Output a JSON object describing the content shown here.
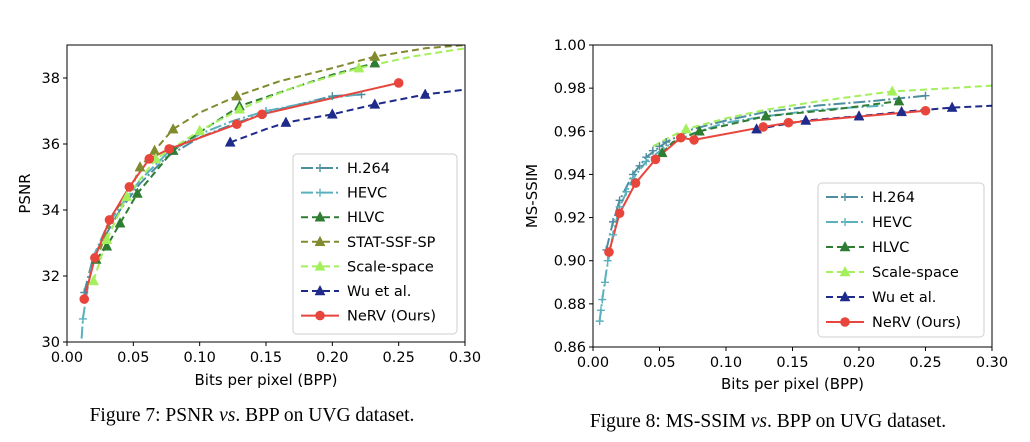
{
  "chart_data": [
    {
      "type": "line",
      "caption": "Figure 7: PSNR vs. BPP on UVG dataset.",
      "caption_parts": {
        "prefix": "Figure 7: PSNR ",
        "italic": "vs",
        "suffix": ". BPP on UVG dataset."
      },
      "xlabel": "Bits per pixel (BPP)",
      "ylabel": "PSNR",
      "xlim": [
        0.0,
        0.3
      ],
      "ylim": [
        30,
        39
      ],
      "xticks": [
        "0.00",
        "0.05",
        "0.10",
        "0.15",
        "0.20",
        "0.25",
        "0.30"
      ],
      "yticks": [
        "30",
        "32",
        "34",
        "36",
        "38"
      ],
      "legend_position": "lower-right",
      "series": [
        {
          "name": "H.264",
          "color": "#4c8ea0",
          "dash": "12 3 2 3",
          "marker": "plus",
          "x": [
            0.013,
            0.02,
            0.03,
            0.04,
            0.055,
            0.075,
            0.1,
            0.125,
            0.15,
            0.175,
            0.2,
            0.222
          ],
          "y": [
            31.5,
            32.6,
            33.3,
            34.0,
            34.8,
            35.6,
            36.2,
            36.6,
            36.95,
            37.2,
            37.45,
            37.5
          ],
          "markers_x": [
            0.013,
            0.15,
            0.2,
            0.222
          ],
          "markers_y": [
            31.5,
            36.95,
            37.45,
            37.5
          ]
        },
        {
          "name": "HEVC",
          "color": "#5ab0bd",
          "dash": "12 3 2 3",
          "marker": "plus",
          "x": [
            0.01,
            0.012,
            0.015,
            0.02,
            0.03,
            0.04,
            0.055,
            0.075,
            0.1,
            0.125,
            0.15,
            0.2,
            0.22
          ],
          "y": [
            29.5,
            30.7,
            31.5,
            32.6,
            33.5,
            34.1,
            34.9,
            35.7,
            36.3,
            36.7,
            37.0,
            37.4,
            37.5
          ],
          "markers_x": [
            0.012,
            0.15
          ],
          "markers_y": [
            30.7,
            37.0
          ]
        },
        {
          "name": "HLVC",
          "color": "#2e7d32",
          "dash": "7 4",
          "marker": "triangle",
          "x": [
            0.022,
            0.03,
            0.04,
            0.053,
            0.08,
            0.1,
            0.13,
            0.2,
            0.232
          ],
          "y": [
            32.5,
            32.9,
            33.6,
            34.5,
            35.8,
            36.35,
            37.15,
            38.1,
            38.45
          ],
          "markers_x": [
            0.022,
            0.03,
            0.04,
            0.053,
            0.08,
            0.13,
            0.232
          ],
          "markers_y": [
            32.5,
            32.9,
            33.6,
            34.5,
            35.8,
            37.15,
            38.45
          ]
        },
        {
          "name": "STAT-SSF-SP",
          "color": "#828a2e",
          "dash": "7 4",
          "marker": "triangle",
          "x": [
            0.025,
            0.035,
            0.048,
            0.055,
            0.066,
            0.08,
            0.1,
            0.128,
            0.16,
            0.2,
            0.232,
            0.27,
            0.3
          ],
          "y": [
            32.8,
            33.9,
            34.6,
            35.3,
            35.8,
            36.45,
            36.95,
            37.45,
            37.9,
            38.3,
            38.65,
            38.9,
            39.0
          ],
          "markers_x": [
            0.055,
            0.066,
            0.08,
            0.128,
            0.232
          ],
          "markers_y": [
            35.3,
            35.8,
            36.45,
            37.45,
            38.65
          ]
        },
        {
          "name": "Scale-space",
          "color": "#a4ef5c",
          "dash": "7 4",
          "marker": "triangle",
          "x": [
            0.02,
            0.03,
            0.045,
            0.067,
            0.1,
            0.13,
            0.17,
            0.22,
            0.26,
            0.3
          ],
          "y": [
            31.85,
            33.1,
            34.4,
            35.55,
            36.4,
            37.05,
            37.7,
            38.3,
            38.65,
            38.9
          ],
          "markers_x": [
            0.02,
            0.03,
            0.045,
            0.067,
            0.1,
            0.13,
            0.22
          ],
          "markers_y": [
            31.85,
            33.1,
            34.4,
            35.55,
            36.4,
            37.05,
            38.3
          ]
        },
        {
          "name": "Wu et al.",
          "color": "#1e2b8a",
          "dash": "7 4",
          "marker": "triangle",
          "x": [
            0.123,
            0.15,
            0.165,
            0.2,
            0.232,
            0.27,
            0.3
          ],
          "y": [
            36.05,
            36.45,
            36.65,
            36.9,
            37.2,
            37.5,
            37.65
          ],
          "markers_x": [
            0.123,
            0.165,
            0.2,
            0.232,
            0.27
          ],
          "markers_y": [
            36.05,
            36.65,
            36.9,
            37.2,
            37.5
          ]
        },
        {
          "name": "NeRV (Ours)",
          "color": "#e8453c",
          "dash": "",
          "marker": "circle",
          "x": [
            0.013,
            0.021,
            0.032,
            0.047,
            0.062,
            0.077,
            0.128,
            0.147,
            0.25
          ],
          "y": [
            31.3,
            32.55,
            33.7,
            34.7,
            35.55,
            35.85,
            36.6,
            36.9,
            37.85
          ],
          "markers_x": [
            0.013,
            0.021,
            0.032,
            0.047,
            0.062,
            0.077,
            0.128,
            0.147,
            0.25
          ],
          "markers_y": [
            31.3,
            32.55,
            33.7,
            34.7,
            35.55,
            35.85,
            36.6,
            36.9,
            37.85
          ]
        }
      ]
    },
    {
      "type": "line",
      "caption": "Figure 8: MS-SSIM vs. BPP on UVG dataset.",
      "caption_parts": {
        "prefix": "Figure 8: MS-SSIM ",
        "italic": "vs",
        "suffix": ". BPP on UVG dataset."
      },
      "xlabel": "Bits per pixel (BPP)",
      "ylabel": "MS-SSIM",
      "xlim": [
        0.0,
        0.3
      ],
      "ylim": [
        0.86,
        1.0
      ],
      "xticks": [
        "0.00",
        "0.05",
        "0.10",
        "0.15",
        "0.20",
        "0.25",
        "0.30"
      ],
      "yticks": [
        "0.86",
        "0.88",
        "0.90",
        "0.92",
        "0.94",
        "0.96",
        "0.98",
        "1.00"
      ],
      "legend_position": "lower-right",
      "series": [
        {
          "name": "H.264",
          "color": "#4c8ea0",
          "dash": "12 3 2 3",
          "marker": "plus",
          "x": [
            0.01,
            0.015,
            0.02,
            0.03,
            0.04,
            0.055,
            0.075,
            0.1,
            0.13,
            0.17,
            0.21,
            0.25
          ],
          "y": [
            0.905,
            0.918,
            0.928,
            0.94,
            0.948,
            0.955,
            0.961,
            0.965,
            0.969,
            0.972,
            0.974,
            0.9765
          ],
          "markers_x": [
            0.01,
            0.015,
            0.02,
            0.03,
            0.035,
            0.04,
            0.045,
            0.05,
            0.055,
            0.25
          ],
          "markers_y": [
            0.905,
            0.918,
            0.928,
            0.94,
            0.944,
            0.948,
            0.951,
            0.953,
            0.955,
            0.9765
          ]
        },
        {
          "name": "HEVC",
          "color": "#5ab0bd",
          "dash": "12 3 2 3",
          "marker": "plus",
          "x": [
            0.005,
            0.007,
            0.01,
            0.015,
            0.02,
            0.03,
            0.04,
            0.055,
            0.075,
            0.1,
            0.13,
            0.17,
            0.22
          ],
          "y": [
            0.872,
            0.882,
            0.895,
            0.912,
            0.925,
            0.938,
            0.946,
            0.953,
            0.959,
            0.964,
            0.967,
            0.97,
            0.972
          ],
          "markers_x": [
            0.005,
            0.006,
            0.007,
            0.009,
            0.011,
            0.015,
            0.02,
            0.025,
            0.03,
            0.04
          ],
          "markers_y": [
            0.872,
            0.877,
            0.882,
            0.89,
            0.9,
            0.912,
            0.925,
            0.932,
            0.938,
            0.946
          ]
        },
        {
          "name": "HLVC",
          "color": "#2e7d32",
          "dash": "7 4",
          "marker": "triangle",
          "x": [
            0.052,
            0.06,
            0.08,
            0.13,
            0.18,
            0.23
          ],
          "y": [
            0.95,
            0.955,
            0.96,
            0.967,
            0.97,
            0.974
          ],
          "markers_x": [
            0.052,
            0.08,
            0.13,
            0.23
          ],
          "markers_y": [
            0.95,
            0.96,
            0.967,
            0.974
          ]
        },
        {
          "name": "Scale-space",
          "color": "#a4ef5c",
          "dash": "7 4",
          "marker": "triangle",
          "x": [
            0.045,
            0.06,
            0.07,
            0.1,
            0.13,
            0.17,
            0.225,
            0.27,
            0.3
          ],
          "y": [
            0.953,
            0.958,
            0.961,
            0.966,
            0.97,
            0.974,
            0.9785,
            0.98,
            0.9812
          ],
          "markers_x": [
            0.07,
            0.225
          ],
          "markers_y": [
            0.961,
            0.9785
          ]
        },
        {
          "name": "Wu et al.",
          "color": "#1e2b8a",
          "dash": "7 4",
          "marker": "triangle",
          "x": [
            0.123,
            0.16,
            0.2,
            0.232,
            0.27,
            0.3
          ],
          "y": [
            0.961,
            0.965,
            0.967,
            0.969,
            0.971,
            0.9718
          ],
          "markers_x": [
            0.123,
            0.16,
            0.2,
            0.232,
            0.27
          ],
          "markers_y": [
            0.961,
            0.965,
            0.967,
            0.969,
            0.971
          ]
        },
        {
          "name": "NeRV (Ours)",
          "color": "#e8453c",
          "dash": "",
          "marker": "circle",
          "x": [
            0.012,
            0.02,
            0.032,
            0.047,
            0.066,
            0.076,
            0.128,
            0.147,
            0.25
          ],
          "y": [
            0.904,
            0.922,
            0.936,
            0.947,
            0.957,
            0.956,
            0.962,
            0.964,
            0.9695
          ],
          "markers_x": [
            0.012,
            0.02,
            0.032,
            0.047,
            0.066,
            0.076,
            0.128,
            0.147,
            0.25
          ],
          "markers_y": [
            0.904,
            0.922,
            0.936,
            0.947,
            0.957,
            0.956,
            0.962,
            0.964,
            0.9695
          ]
        }
      ]
    }
  ]
}
